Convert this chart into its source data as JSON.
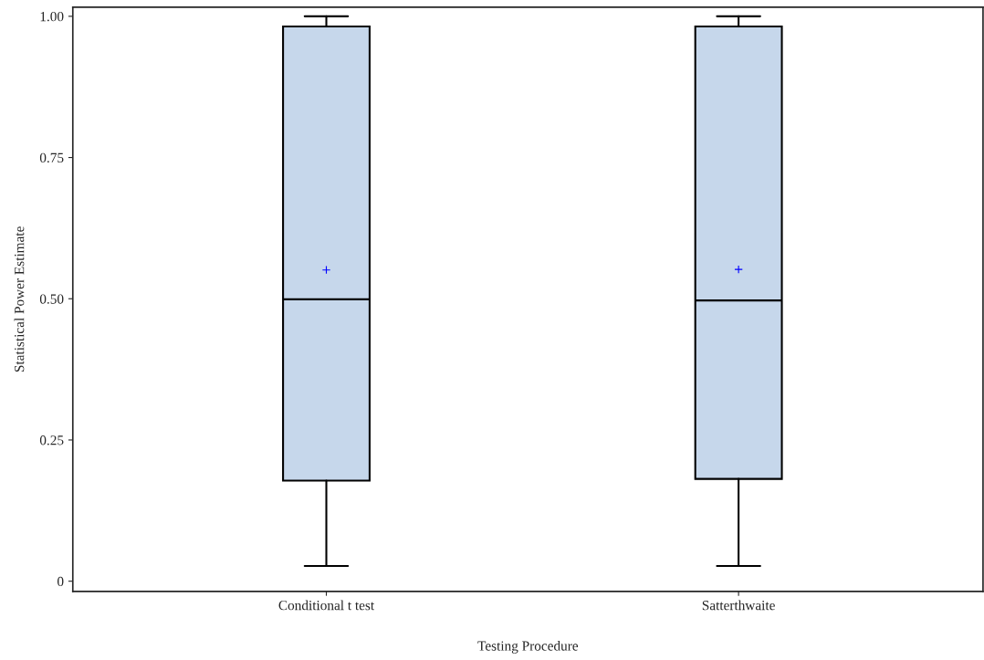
{
  "chart_data": {
    "type": "box",
    "xlabel": "Testing Procedure",
    "ylabel": "Statistical Power Estimate",
    "categories": [
      "Conditional t test",
      "Satterthwaite"
    ],
    "series": [
      {
        "color": "#c6d7eb",
        "boxes": [
          {
            "low": 0.027,
            "q1": 0.178,
            "median": 0.499,
            "q3": 0.982,
            "high": 1.0,
            "mean": 0.551
          },
          {
            "low": 0.027,
            "q1": 0.181,
            "median": 0.497,
            "q3": 0.982,
            "high": 1.0,
            "mean": 0.552
          }
        ]
      }
    ],
    "ylim": [
      -0.018,
      1.016
    ],
    "yticks": [
      {
        "value": 0,
        "label": "0"
      },
      {
        "value": 0.25,
        "label": "0.25"
      },
      {
        "value": 0.5,
        "label": "0.50"
      },
      {
        "value": 0.75,
        "label": "0.75"
      },
      {
        "value": 1.0,
        "label": "1.00"
      }
    ],
    "grid": false,
    "legend": false
  }
}
